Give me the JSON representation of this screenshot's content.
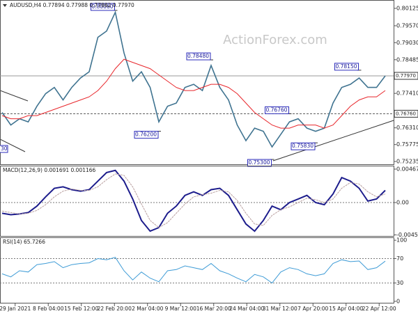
{
  "chart_data": [
    {
      "type": "line",
      "title": "AUDUSD,H4 0.77894 0.77988 0.77882 0.77970",
      "watermark": "ActionForex.com",
      "xlim": [
        -0.24,
        44.96
      ],
      "xticks": [
        {
          "value": 1.5,
          "label": "29 Jan 2021"
        },
        {
          "value": 5.3,
          "label": "8 Feb 04:00"
        },
        {
          "value": 9.1,
          "label": "15 Feb 12:00"
        },
        {
          "value": 12.9,
          "label": "22 Feb 20:00"
        },
        {
          "value": 16.7,
          "label": "2 Mar 04:00"
        },
        {
          "value": 20.5,
          "label": "9 Mar 12:00"
        },
        {
          "value": 24.3,
          "label": "16 Mar 20:00"
        },
        {
          "value": 28.1,
          "label": "24 Mar 04:00"
        },
        {
          "value": 31.9,
          "label": "31 Mar 12:00"
        },
        {
          "value": 35.7,
          "label": "7 Apr 20:00"
        },
        {
          "value": 39.5,
          "label": "15 Apr 04:00"
        },
        {
          "value": 43.3,
          "label": "22 Apr 12:00"
        }
      ],
      "ylim": [
        0.75124,
        0.80392
      ],
      "yticks": [
        {
          "value": 0.80125,
          "label": "0.80125"
        },
        {
          "value": 0.7957,
          "label": "0.79570"
        },
        {
          "value": 0.7903,
          "label": "0.79030"
        },
        {
          "value": 0.78485,
          "label": "0.78485"
        },
        {
          "value": 0.7741,
          "label": "0.77410"
        },
        {
          "value": 0.7631,
          "label": "0.76310"
        },
        {
          "value": 0.75775,
          "label": "0.75775"
        },
        {
          "value": 0.75235,
          "label": "0.75235"
        }
      ],
      "last_price": {
        "value": 0.7797,
        "label": "0.77970"
      },
      "level": {
        "value": 0.7676,
        "label": "0.76760"
      },
      "clipped_label": "30",
      "annotations": [
        {
          "x": 13,
          "value": 0.8006,
          "label": "0.80060"
        },
        {
          "x": 24,
          "value": 0.7848,
          "label": "0.78480"
        },
        {
          "x": 18,
          "value": 0.762,
          "label": "0.76200"
        },
        {
          "x": 33,
          "value": 0.7676,
          "label": "0.76760"
        },
        {
          "x": 36,
          "value": 0.7583,
          "label": "0.75830"
        },
        {
          "x": 31,
          "value": 0.753,
          "label": "0.75300"
        },
        {
          "x": 41,
          "value": 0.7815,
          "label": "0.78150"
        }
      ],
      "series": [
        {
          "color": "#3f7390",
          "values": [
            0.768,
            0.764,
            0.766,
            0.765,
            0.77,
            0.774,
            0.776,
            0.772,
            0.776,
            0.779,
            0.781,
            0.792,
            0.794,
            0.8,
            0.787,
            0.778,
            0.781,
            0.776,
            0.765,
            0.77,
            0.771,
            0.776,
            0.777,
            0.775,
            0.783,
            0.776,
            0.772,
            0.764,
            0.759,
            0.763,
            0.762,
            0.757,
            0.761,
            0.765,
            0.766,
            0.763,
            0.762,
            0.763,
            0.771,
            0.776,
            0.777,
            0.779,
            0.776,
            0.776,
            0.7797
          ]
        },
        {
          "color": "#e8262b",
          "values": [
            0.767,
            0.766,
            0.766,
            0.767,
            0.767,
            0.768,
            0.769,
            0.77,
            0.771,
            0.772,
            0.773,
            0.775,
            0.778,
            0.782,
            0.785,
            0.784,
            0.783,
            0.782,
            0.78,
            0.778,
            0.776,
            0.775,
            0.775,
            0.776,
            0.777,
            0.777,
            0.776,
            0.774,
            0.771,
            0.768,
            0.766,
            0.764,
            0.763,
            0.763,
            0.764,
            0.764,
            0.764,
            0.763,
            0.764,
            0.767,
            0.77,
            0.772,
            0.773,
            0.773,
            0.775
          ]
        }
      ]
    },
    {
      "type": "line",
      "title": "MACD(12,26,9) 0.001691 0.001166",
      "ylim": [
        -0.00477,
        0.00516
      ],
      "yticks": [
        0.004677,
        {
          "value": 0,
          "label": "0.00"
        },
        -0.004519
      ],
      "series": [
        {
          "color": "#1c1c8c",
          "values": [
            -0.0015,
            -0.0017,
            -0.0016,
            -0.0014,
            -0.0005,
            0.0008,
            0.002,
            0.0022,
            0.0018,
            0.0016,
            0.0018,
            0.003,
            0.0042,
            0.0045,
            0.003,
            0.0005,
            -0.0025,
            -0.004,
            -0.0035,
            -0.0015,
            -0.0005,
            0.001,
            0.0015,
            0.001,
            0.0018,
            0.002,
            0.001,
            -0.001,
            -0.003,
            -0.004,
            -0.0025,
            -0.0005,
            -0.001,
            0,
            0.0005,
            0.001,
            0,
            -0.0003,
            0.0012,
            0.0035,
            0.003,
            0.002,
            0.0002,
            0.0005,
            0.0017
          ]
        },
        {
          "color": "#b9a0a0",
          "values": [
            -0.0012,
            -0.0014,
            -0.0016,
            -0.0015,
            -0.0011,
            -0.0003,
            0.0008,
            0.0016,
            0.0019,
            0.0017,
            0.0017,
            0.0022,
            0.0032,
            0.004,
            0.0038,
            0.0022,
            -0.0002,
            -0.0025,
            -0.0035,
            -0.0028,
            -0.0015,
            -0.0002,
            0.0008,
            0.0011,
            0.0013,
            0.0017,
            0.0015,
            0.0003,
            -0.0015,
            -0.003,
            -0.0032,
            -0.0018,
            -0.001,
            -0.0006,
            0,
            0.0006,
            0.0004,
            0,
            0.0005,
            0.002,
            0.0028,
            0.0026,
            0.0015,
            0.0008,
            0.0012
          ]
        }
      ]
    },
    {
      "type": "line",
      "title": "RSI(14) 65.7266",
      "ylim": [
        -3.5,
        104.7
      ],
      "yticks": [
        100,
        70,
        30,
        0
      ],
      "levels": [
        70,
        30
      ],
      "series": [
        {
          "color": "#3d9bd6",
          "values": [
            45,
            40,
            50,
            48,
            60,
            62,
            65,
            55,
            60,
            62,
            63,
            70,
            68,
            72,
            50,
            35,
            48,
            38,
            32,
            50,
            52,
            58,
            55,
            52,
            62,
            50,
            45,
            38,
            32,
            44,
            40,
            30,
            48,
            55,
            52,
            45,
            42,
            45,
            62,
            68,
            65,
            66,
            52,
            55,
            65.7266
          ]
        }
      ]
    }
  ]
}
